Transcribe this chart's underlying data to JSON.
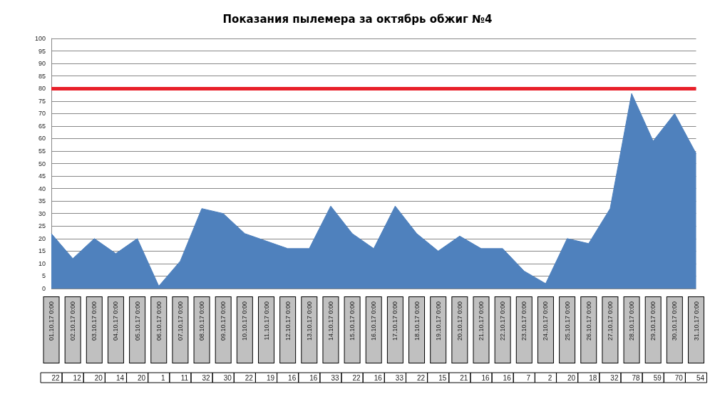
{
  "chart_data": {
    "type": "area",
    "title": "Показания пылемера за октябрь обжиг №4",
    "categories": [
      "01.10.17 0:00",
      "02.10.17 0:00",
      "03.10.17 0:00",
      "04.10.17 0:00",
      "05.10.17 0:00",
      "06.10.17 0:00",
      "07.10.17 0:00",
      "08.10.17 0:00",
      "09.10.17 0:00",
      "10.10.17 0:00",
      "11.10.17 0:00",
      "12.10.17 0:00",
      "13.10.17 0:00",
      "14.10.17 0:00",
      "15.10.17 0:00",
      "16.10.17 0:00",
      "17.10.17 0:00",
      "18.10.17 0:00",
      "19.10.17 0:00",
      "20.10.17 0:00",
      "21.10.17 0:00",
      "22.10.17 0:00",
      "23.10.17 0:00",
      "24.10.17 0:00",
      "25.10.17 0:00",
      "26.10.17 0:00",
      "27.10.17 0:00",
      "28.10.17 0:00",
      "29.10.17 0:00",
      "30.10.17 0:00",
      "31.10.17 0:00"
    ],
    "series": [
      {
        "color": "#4f81bd",
        "values": [
          22,
          12,
          20,
          14,
          20,
          1,
          11,
          32,
          30,
          22,
          19,
          16,
          16,
          33,
          22,
          16,
          33,
          22,
          15,
          21,
          16,
          16,
          7,
          2,
          20,
          18,
          32,
          78,
          59,
          70,
          54
        ]
      }
    ],
    "ylim": [
      0,
      100
    ],
    "yticks": [
      0,
      5,
      10,
      15,
      20,
      25,
      30,
      35,
      40,
      45,
      50,
      55,
      60,
      65,
      70,
      75,
      80,
      85,
      90,
      95,
      100
    ],
    "grid": "y",
    "data_labels": true,
    "ref_lines": [
      {
        "axis": "y",
        "value": 80,
        "color": "#e8202a"
      }
    ]
  }
}
